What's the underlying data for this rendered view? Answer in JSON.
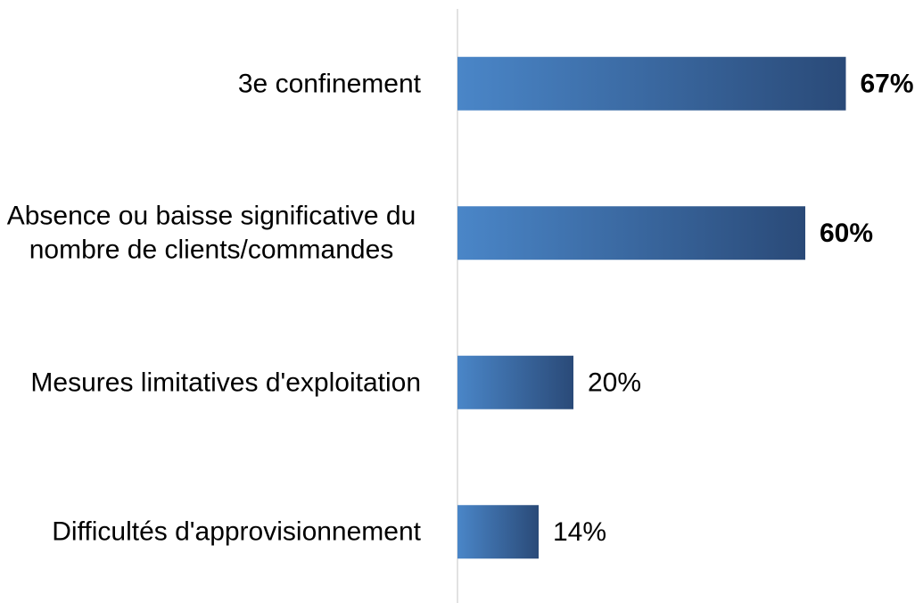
{
  "chart_data": {
    "type": "hbar",
    "categories": [
      "3e confinement",
      "Absence ou baisse significative du nombre de clients/commandes",
      "Mesures limitatives d'exploitation",
      "Difficultés d'approvisionnement"
    ],
    "values": [
      67,
      60,
      20,
      14
    ],
    "value_labels": [
      "67%",
      "60%",
      "20%",
      "14%"
    ],
    "value_label_bold": [
      true,
      true,
      false,
      false
    ],
    "colors": [
      "#4a86c8",
      "#2a4a78"
    ],
    "xlim": [
      0,
      80
    ]
  }
}
